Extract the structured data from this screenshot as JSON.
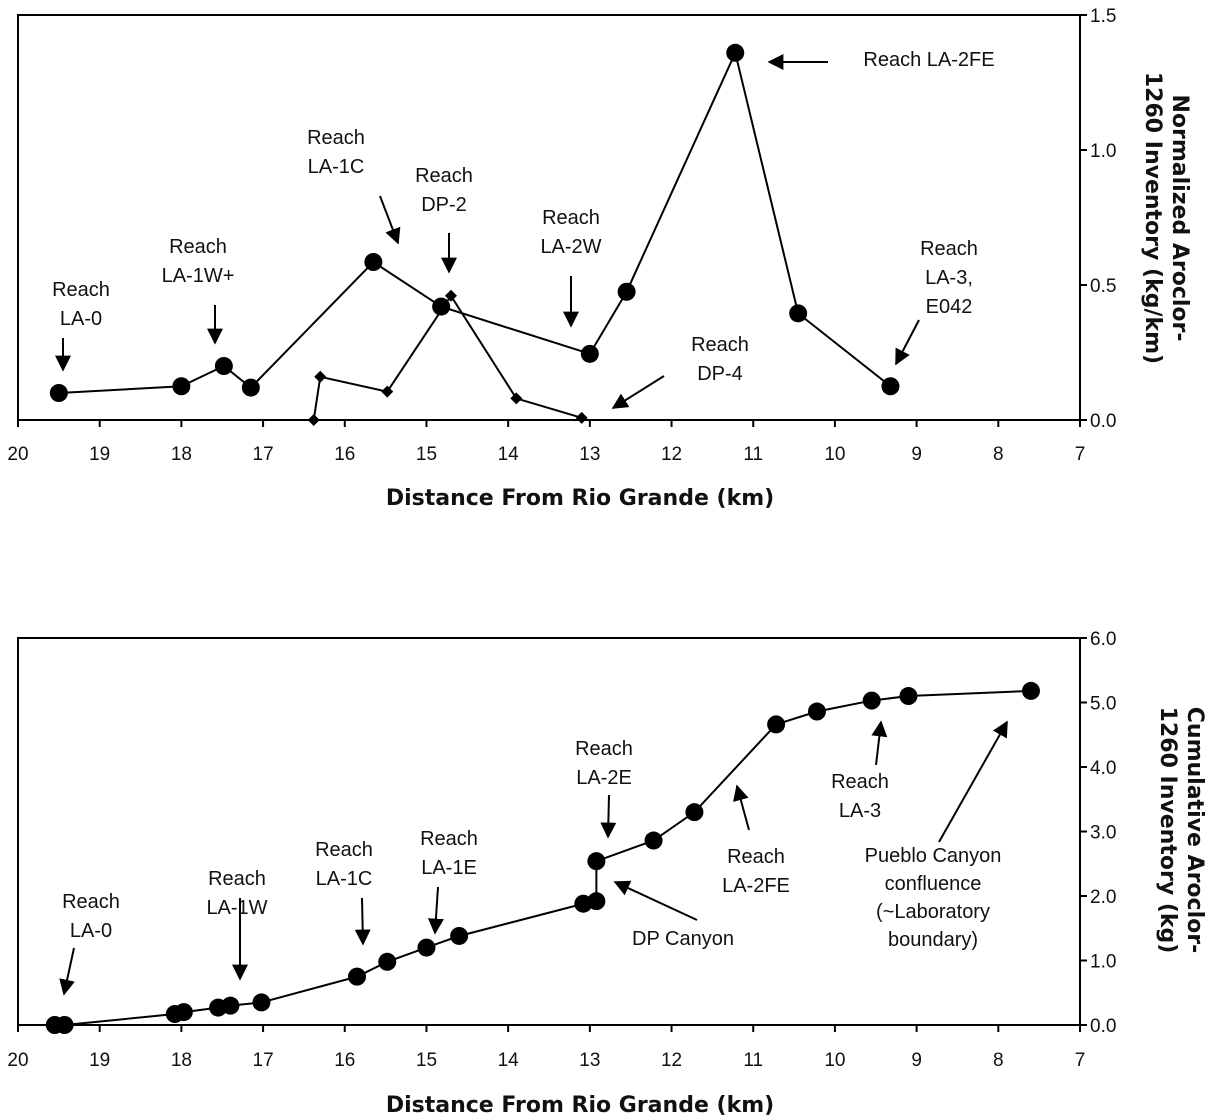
{
  "chart_data": [
    {
      "type": "line",
      "name": "top-chart",
      "xlabel": "Distance From Rio Grande (km)",
      "ylabel": "Normalized Aroclor-1260 Inventory (kg/km)",
      "xlim": [
        20,
        7
      ],
      "ylim": [
        0,
        1.5
      ],
      "x_axis_reversed": true,
      "y_axis_position": "right",
      "grid": false,
      "legend": "none",
      "x_ticks": [
        "20",
        "19",
        "18",
        "17",
        "16",
        "15",
        "14",
        "13",
        "12",
        "11",
        "10",
        "9",
        "8",
        "7"
      ],
      "y_ticks": [
        "0.0",
        "0.5",
        "1.0",
        "1.5"
      ],
      "series": [
        {
          "marker": "circle",
          "color": "#000000",
          "points": [
            [
              19.5,
              0.1
            ],
            [
              18.0,
              0.125
            ],
            [
              17.48,
              0.2
            ],
            [
              17.15,
              0.12
            ],
            [
              15.65,
              0.585
            ],
            [
              14.82,
              0.42
            ],
            [
              13.0,
              0.245
            ],
            [
              12.55,
              0.475
            ],
            [
              11.22,
              1.36
            ],
            [
              10.45,
              0.395
            ],
            [
              9.32,
              0.125
            ]
          ]
        },
        {
          "marker": "diamond",
          "color": "#000000",
          "points": [
            [
              16.38,
              0.0
            ],
            [
              16.3,
              0.16
            ],
            [
              15.48,
              0.105
            ],
            [
              14.7,
              0.46
            ],
            [
              13.9,
              0.08
            ],
            [
              13.1,
              0.008
            ]
          ]
        }
      ],
      "annotations": [
        {
          "lines": [
            "Reach",
            "LA-0"
          ]
        },
        {
          "lines": [
            "Reach",
            "LA-1W+"
          ]
        },
        {
          "lines": [
            "Reach",
            "LA-1C"
          ]
        },
        {
          "lines": [
            "Reach",
            "DP-2"
          ]
        },
        {
          "lines": [
            "Reach",
            "LA-2W"
          ]
        },
        {
          "lines": [
            "Reach LA-2FE"
          ]
        },
        {
          "lines": [
            "Reach",
            "DP-4"
          ]
        },
        {
          "lines": [
            "Reach",
            "LA-3,",
            "E042"
          ]
        }
      ]
    },
    {
      "type": "line",
      "name": "bottom-chart",
      "xlabel": "Distance From Rio Grande (km)",
      "ylabel": "Cumulative Aroclor-1260 Inventory (kg)",
      "xlim": [
        20,
        7
      ],
      "ylim": [
        0,
        6
      ],
      "x_axis_reversed": true,
      "y_axis_position": "right",
      "grid": false,
      "legend": "none",
      "x_ticks": [
        "20",
        "19",
        "18",
        "17",
        "16",
        "15",
        "14",
        "13",
        "12",
        "11",
        "10",
        "9",
        "8",
        "7"
      ],
      "y_ticks": [
        "0.0",
        "1.0",
        "2.0",
        "3.0",
        "4.0",
        "5.0",
        "6.0"
      ],
      "series": [
        {
          "marker": "circle",
          "color": "#000000",
          "points": [
            [
              19.55,
              0.0
            ],
            [
              19.43,
              0.0
            ],
            [
              18.08,
              0.17
            ],
            [
              17.97,
              0.2
            ],
            [
              17.55,
              0.27
            ],
            [
              17.4,
              0.3
            ],
            [
              17.02,
              0.35
            ],
            [
              15.85,
              0.75
            ],
            [
              15.48,
              0.98
            ],
            [
              15.0,
              1.2
            ],
            [
              14.6,
              1.38
            ],
            [
              13.08,
              1.88
            ],
            [
              12.92,
              1.92
            ],
            [
              12.92,
              2.54
            ],
            [
              12.22,
              2.86
            ],
            [
              11.72,
              3.3
            ],
            [
              10.72,
              4.66
            ],
            [
              10.22,
              4.86
            ],
            [
              9.55,
              5.03
            ],
            [
              9.1,
              5.1
            ],
            [
              7.6,
              5.18
            ]
          ]
        }
      ],
      "annotations": [
        {
          "lines": [
            "Reach",
            "LA-0"
          ]
        },
        {
          "lines": [
            "Reach",
            "LA-1W"
          ]
        },
        {
          "lines": [
            "Reach",
            "LA-1C"
          ]
        },
        {
          "lines": [
            "Reach",
            "LA-1E"
          ]
        },
        {
          "lines": [
            "Reach",
            "LA-2E"
          ]
        },
        {
          "lines": [
            "DP Canyon"
          ]
        },
        {
          "lines": [
            "Reach",
            "LA-2FE"
          ]
        },
        {
          "lines": [
            "Reach",
            "LA-3"
          ]
        },
        {
          "lines": [
            "Pueblo Canyon",
            "confluence",
            "(~Laboratory",
            "boundary)"
          ]
        }
      ]
    }
  ]
}
